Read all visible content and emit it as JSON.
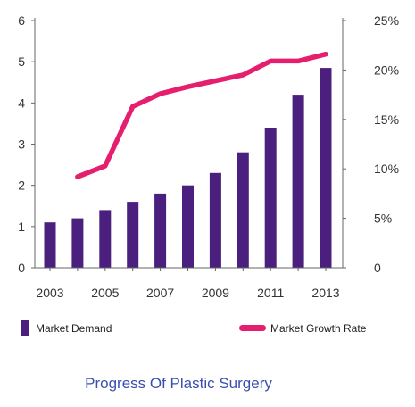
{
  "chart_data": {
    "type": "bar",
    "title": "Progress Of Plastic Surgery",
    "years": [
      2003,
      2004,
      2005,
      2006,
      2007,
      2008,
      2009,
      2010,
      2011,
      2012,
      2013
    ],
    "x_tick_labels": [
      "2003",
      "2005",
      "2007",
      "2009",
      "2011",
      "2013"
    ],
    "y_left": {
      "ylim": [
        0,
        6
      ],
      "tick_labels": [
        "0",
        "1",
        "2",
        "3",
        "4",
        "5",
        "6"
      ]
    },
    "y_right": {
      "ylim": [
        0,
        25
      ],
      "tick_labels": [
        "0",
        "5%",
        "10%",
        "15%",
        "20%",
        "25%"
      ]
    },
    "series": [
      {
        "name": "Market Demand",
        "type": "bar",
        "axis": "left",
        "color": "#4b1f7e",
        "values": [
          1.1,
          1.2,
          1.4,
          1.6,
          1.8,
          2.0,
          2.3,
          2.8,
          3.4,
          4.2,
          4.85
        ]
      },
      {
        "name": "Market Growth Rate",
        "type": "line",
        "axis": "right",
        "color": "#e61e6e",
        "x": [
          2004,
          2005,
          2006,
          2007,
          2008,
          2009,
          2010,
          2011,
          2012,
          2013
        ],
        "values": [
          9.2,
          10.3,
          16.3,
          17.6,
          18.3,
          18.9,
          19.5,
          20.9,
          20.9,
          21.6
        ]
      }
    ],
    "legend": "bottom",
    "grid": false,
    "title_color": "#3a4fb0"
  }
}
